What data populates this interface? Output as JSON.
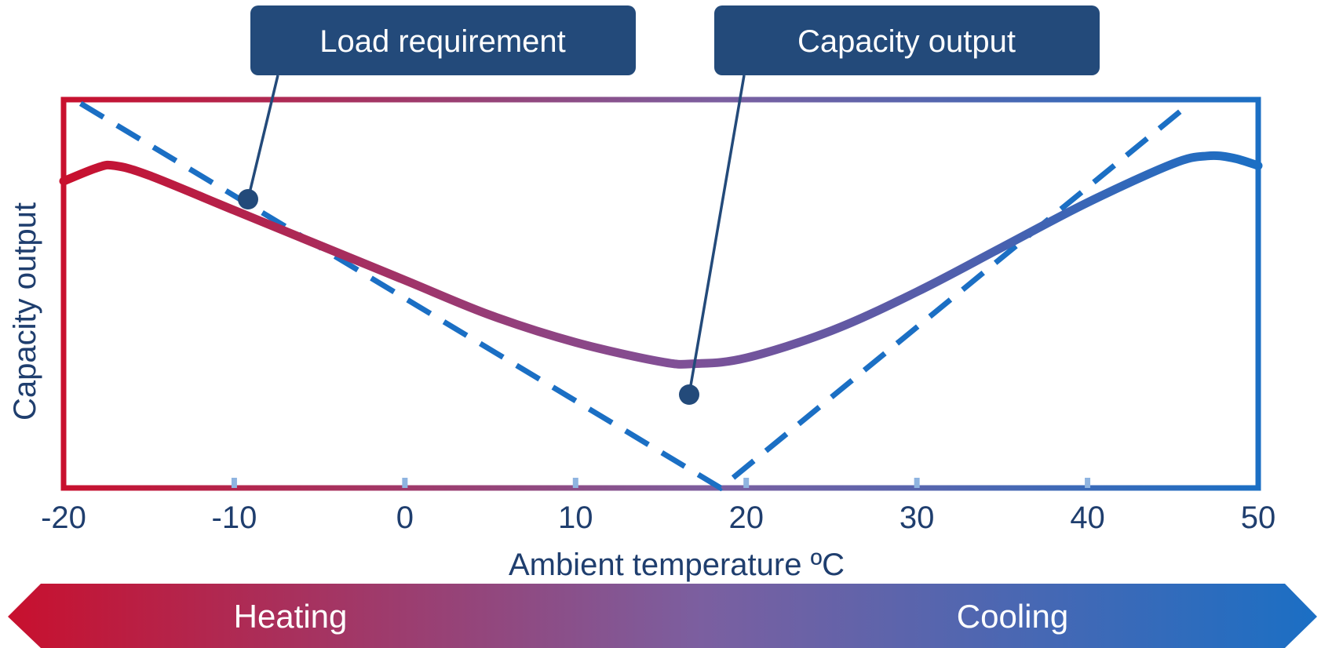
{
  "chart_data": {
    "type": "line",
    "title": "",
    "xlabel": "Ambient temperature ºC",
    "ylabel": "Capacity output",
    "xlim": [
      -20,
      50
    ],
    "ylim": [
      0,
      100
    ],
    "x_ticks": [
      -20,
      -10,
      0,
      10,
      20,
      30,
      40,
      50
    ],
    "grid": false,
    "series": [
      {
        "name": "Load requirement",
        "style": "dashed",
        "color": "#1b6fc4",
        "x": [
          -19,
          18.5,
          46
        ],
        "y": [
          99,
          0,
          99
        ]
      },
      {
        "name": "Capacity output",
        "style": "solid",
        "gradient": [
          "#c8102e",
          "#1b6fc4"
        ],
        "x": [
          -20,
          -18,
          -17,
          -15,
          -10,
          -5,
          0,
          5,
          10,
          15,
          17,
          20,
          25,
          30,
          35,
          40,
          45,
          47,
          48.5,
          50
        ],
        "y": [
          79,
          82.5,
          83,
          80.5,
          71.5,
          62.5,
          53.5,
          44.5,
          37.5,
          32.5,
          32,
          33.5,
          40.5,
          50.5,
          62,
          73.5,
          83.5,
          85.5,
          85,
          83
        ]
      }
    ],
    "annotations": [
      {
        "label": "Load requirement",
        "x": -9.3,
        "y": 74
      },
      {
        "label": "Capacity output",
        "x": 16.8,
        "y": 32
      }
    ],
    "regions": [
      {
        "label": "Heating",
        "color": "#c8102e"
      },
      {
        "label": "Cooling",
        "color": "#1b6fc4"
      }
    ]
  },
  "colors": {
    "heating": "#c8102e",
    "mid": "#7b5fa0",
    "cooling": "#1b6fc4",
    "callout": "#234a7a",
    "text": "#1f3e6e",
    "tick_marks": "#8fb4e0"
  }
}
